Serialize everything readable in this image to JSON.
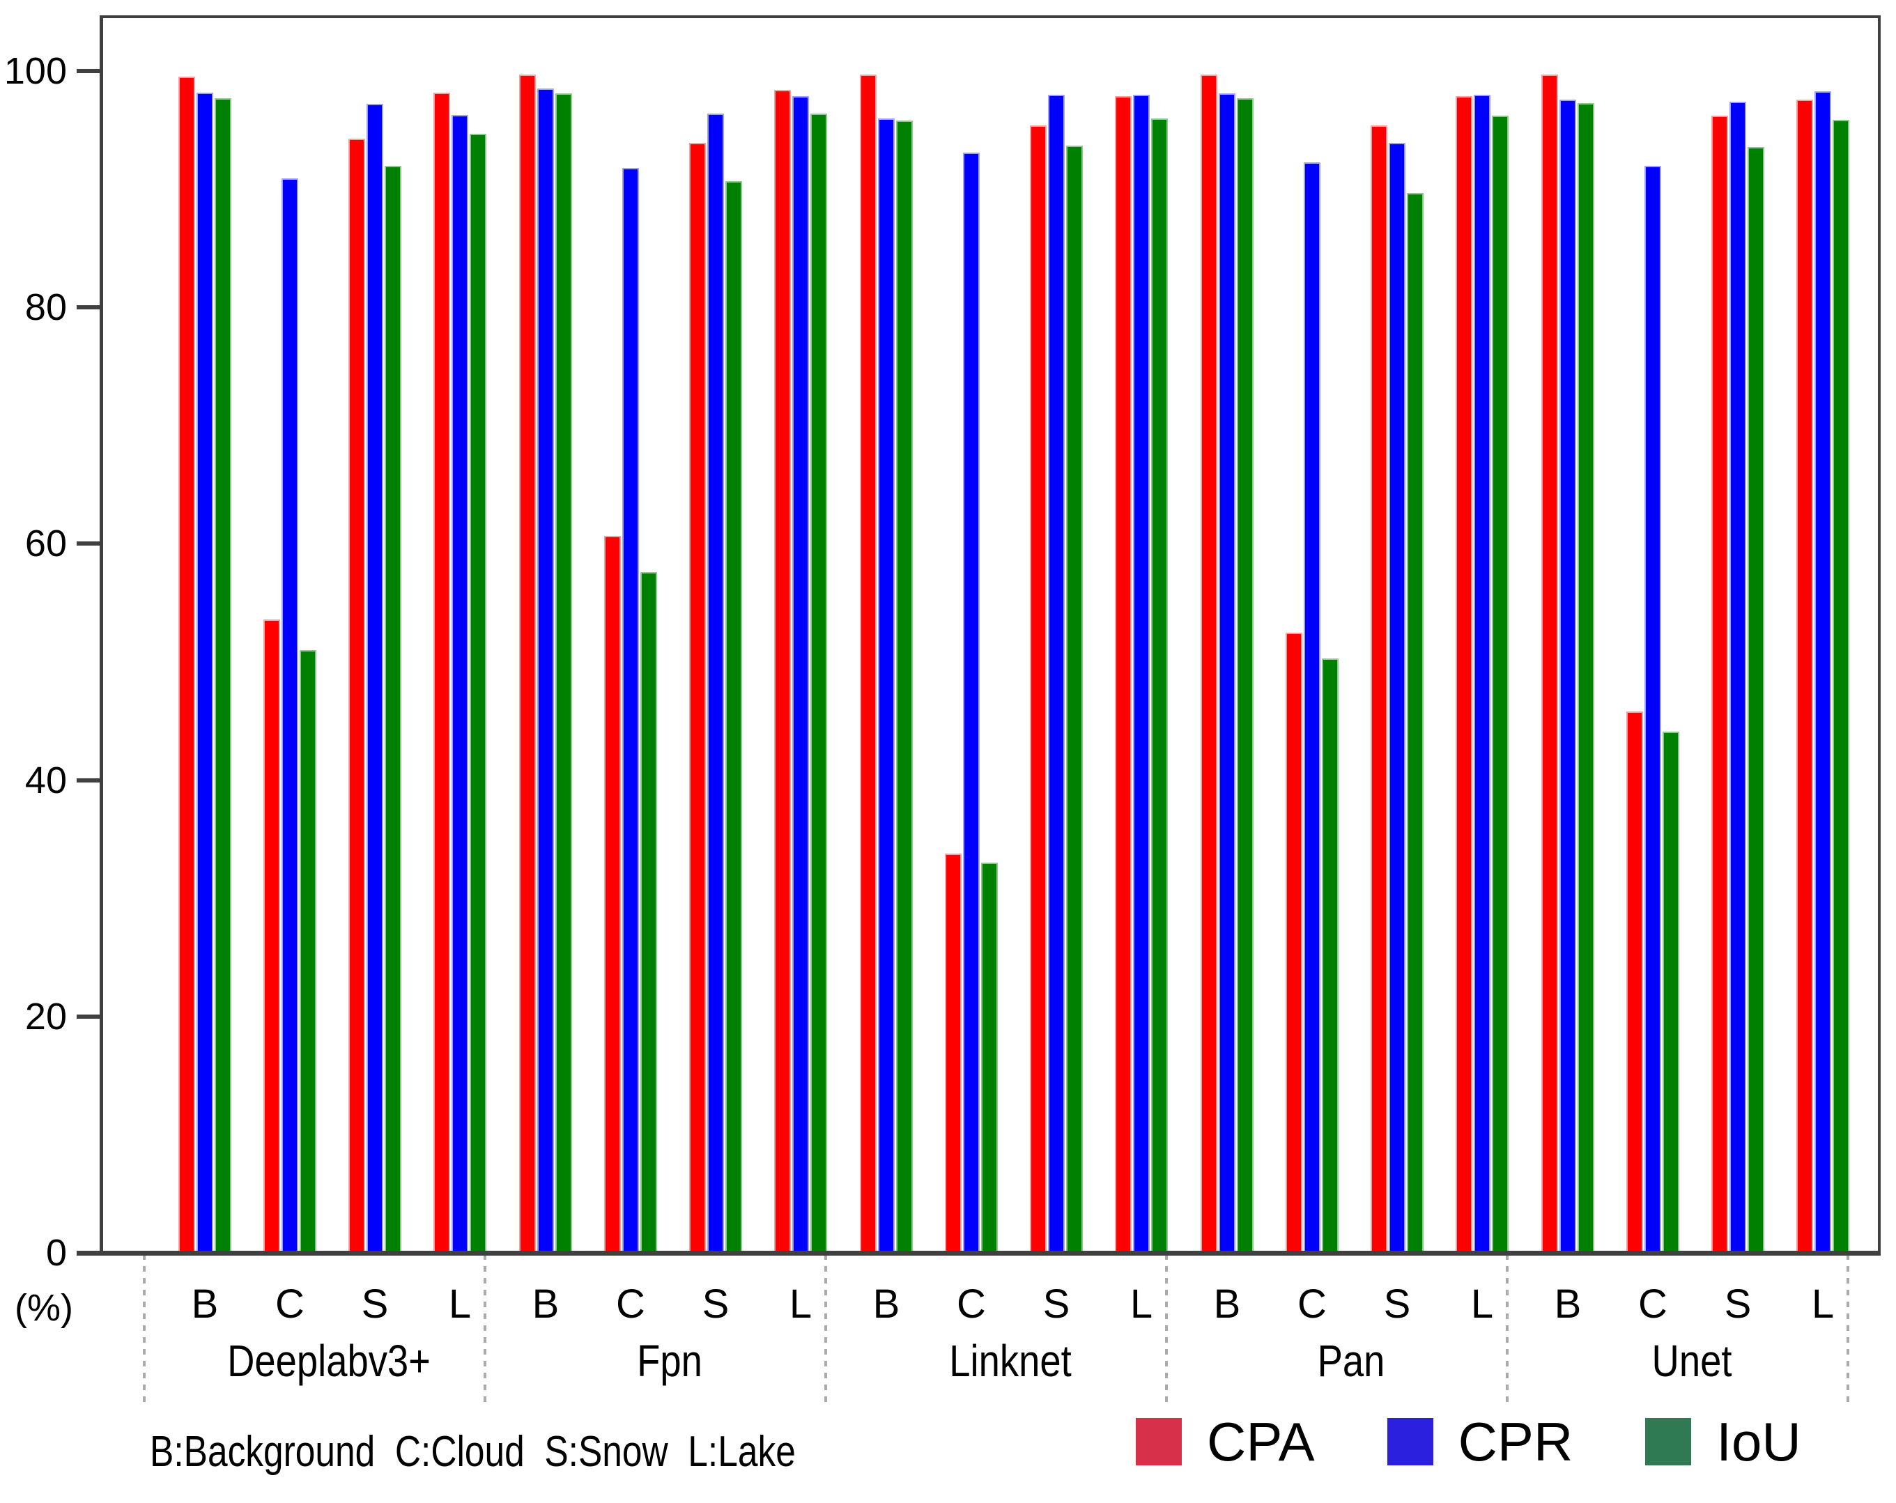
{
  "figure": {
    "footnote": "B:Background  C:Cloud  S:Snow  L:Lake",
    "y_axis_unit": "(%)"
  },
  "chart_data": {
    "type": "bar",
    "title": "",
    "ylabel": "(%)",
    "ylim": [
      0,
      104.7
    ],
    "yticks": [
      0,
      20,
      40,
      60,
      80,
      100
    ],
    "grid": false,
    "legend_position": "bottom-right",
    "categories": [
      "B",
      "C",
      "S",
      "L"
    ],
    "category_key": {
      "B": "Background",
      "C": "Cloud",
      "S": "Snow",
      "L": "Lake"
    },
    "series": [
      {
        "name": "CPA",
        "bar_color": "#ff0000",
        "bar_edge_color": "#ffa0a0",
        "legend_color": "#d7304a"
      },
      {
        "name": "CPR",
        "bar_color": "#0000ff",
        "bar_edge_color": "#a0a0ff",
        "legend_color": "#2a20dd"
      },
      {
        "name": "IoU",
        "bar_color": "#008000",
        "bar_edge_color": "#8cc98c",
        "legend_color": "#2f7a52"
      }
    ],
    "groups": [
      {
        "name": "Deeplabv3+",
        "values": [
          [
            99.5,
            98.2,
            97.7
          ],
          [
            53.6,
            90.9,
            51.0
          ],
          [
            94.3,
            97.2,
            92.0
          ],
          [
            98.2,
            96.3,
            94.7
          ]
        ]
      },
      {
        "name": "Fpn",
        "values": [
          [
            99.7,
            98.5,
            98.1
          ],
          [
            60.7,
            91.8,
            57.6
          ],
          [
            93.9,
            96.4,
            90.7
          ],
          [
            98.4,
            97.9,
            96.4
          ]
        ]
      },
      {
        "name": "Linknet",
        "values": [
          [
            99.7,
            96.0,
            95.8
          ],
          [
            33.8,
            93.1,
            33.0
          ],
          [
            95.4,
            98.0,
            93.7
          ],
          [
            97.9,
            98.0,
            96.0
          ]
        ]
      },
      {
        "name": "Pan",
        "values": [
          [
            99.7,
            98.1,
            97.7
          ],
          [
            52.5,
            92.3,
            50.3
          ],
          [
            95.4,
            93.9,
            89.7
          ],
          [
            97.9,
            98.0,
            96.2
          ]
        ]
      },
      {
        "name": "Unet",
        "values": [
          [
            99.7,
            97.6,
            97.3
          ],
          [
            45.8,
            92.0,
            44.1
          ],
          [
            96.2,
            97.4,
            93.6
          ],
          [
            97.6,
            98.3,
            95.9
          ]
        ]
      }
    ],
    "axis_color": "#404040",
    "separator_color": "#ababab"
  }
}
